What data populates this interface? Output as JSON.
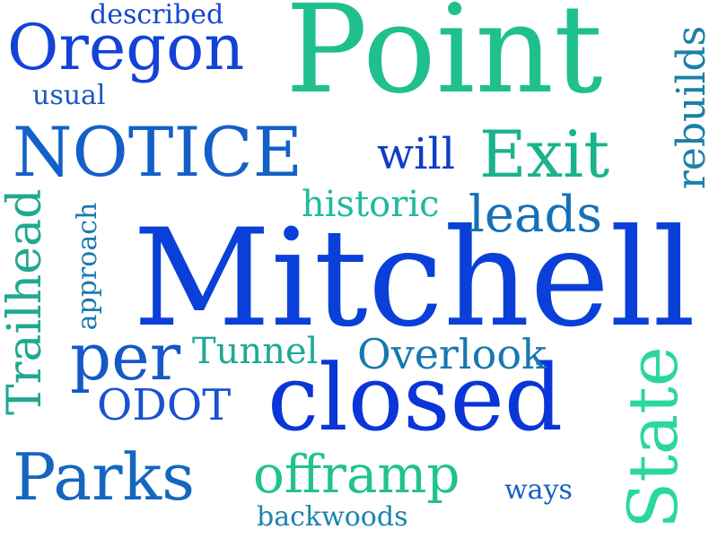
{
  "words": [
    {
      "key": "mitchell",
      "text": "Mitchell",
      "color": "#0a3fd9"
    },
    {
      "key": "point",
      "text": "Point",
      "color": "#1fc08e"
    },
    {
      "key": "closed",
      "text": "closed",
      "color": "#0a35d8"
    },
    {
      "key": "notice",
      "text": "NOTICE",
      "color": "#1460c8"
    },
    {
      "key": "oregon",
      "text": "Oregon",
      "color": "#1342d8"
    },
    {
      "key": "exit",
      "text": "Exit",
      "color": "#1ab38e"
    },
    {
      "key": "will",
      "text": "will",
      "color": "#0f3cc8"
    },
    {
      "key": "leads",
      "text": "leads",
      "color": "#1570b8"
    },
    {
      "key": "historic",
      "text": "historic",
      "color": "#21b9a0"
    },
    {
      "key": "per",
      "text": "per",
      "color": "#1558c8"
    },
    {
      "key": "tunnel",
      "text": "Tunnel",
      "color": "#1daa94"
    },
    {
      "key": "overlook",
      "text": "Overlook",
      "color": "#1678b0"
    },
    {
      "key": "odot",
      "text": "ODOT",
      "color": "#1a52d0"
    },
    {
      "key": "parks",
      "text": "Parks",
      "color": "#1566c0"
    },
    {
      "key": "offramp",
      "text": "offramp",
      "color": "#21c28e"
    },
    {
      "key": "ways",
      "text": "ways",
      "color": "#1560c4"
    },
    {
      "key": "backwoods",
      "text": "backwoods",
      "color": "#1a84b0"
    },
    {
      "key": "described",
      "text": "described",
      "color": "#1648d0"
    },
    {
      "key": "usual",
      "text": "usual",
      "color": "#1b58c0"
    },
    {
      "key": "rebuilds",
      "text": "rebuilds",
      "color": "#1a80a8"
    },
    {
      "key": "state",
      "text": "State",
      "color": "#2ad89a"
    },
    {
      "key": "trailhead",
      "text": "Trailhead",
      "color": "#21a890"
    },
    {
      "key": "approach",
      "text": "approach",
      "color": "#1a7ab0"
    }
  ]
}
